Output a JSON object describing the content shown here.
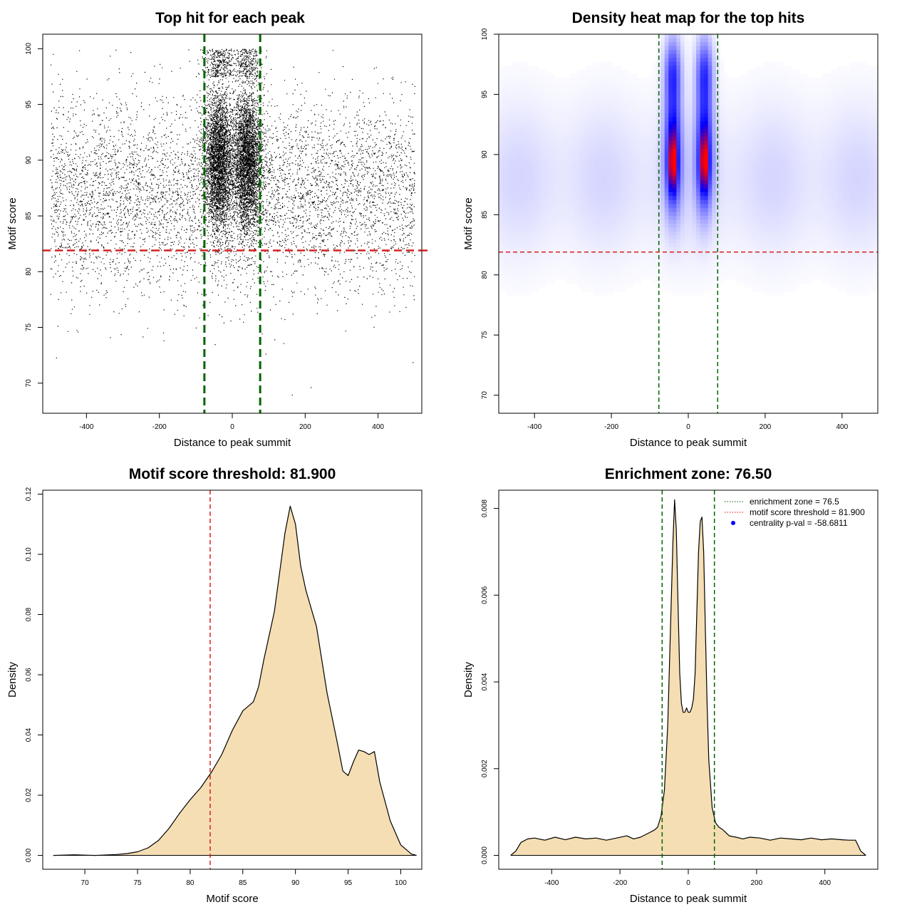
{
  "chart_data": [
    {
      "id": "scatter",
      "type": "scatter",
      "title": "Top hit for each peak",
      "xlabel": "Distance to peak summit",
      "ylabel": "Motif score",
      "xlim": [
        -520,
        520
      ],
      "ylim": [
        67.3,
        101.3
      ],
      "xticks": [
        -400,
        -200,
        0,
        200,
        400
      ],
      "yticks": [
        70,
        75,
        80,
        85,
        90,
        95,
        100
      ],
      "xtick_labels": [
        "-400",
        "-200",
        "0",
        "200",
        "400"
      ],
      "ytick_labels": [
        "70",
        "75",
        "80",
        "85",
        "90",
        "95",
        "100"
      ],
      "vlines": [
        -76.5,
        76.5
      ],
      "hline": 81.9,
      "point_model": {
        "background_count": 5600,
        "background_x_range": [
          -500,
          500
        ],
        "background_score_mean": 87,
        "background_score_sd": 4.3,
        "central_count": 7500,
        "central_modes_x": [
          -38,
          40
        ],
        "central_sd_x": 20,
        "central_score_mean": 90,
        "central_score_sd": 3.2,
        "max_score": 100
      }
    },
    {
      "id": "heatmap",
      "type": "heatmap",
      "title": "Density heat map for the top hits",
      "xlabel": "Distance to peak summit",
      "ylabel": "Motif score",
      "xlim": [
        -493,
        493
      ],
      "ylim": [
        68.5,
        100
      ],
      "xticks": [
        -400,
        -200,
        0,
        200,
        400
      ],
      "yticks": [
        70,
        75,
        80,
        85,
        90,
        95,
        100
      ],
      "xtick_labels": [
        "-400",
        "-200",
        "0",
        "200",
        "400"
      ],
      "ytick_labels": [
        "70",
        "75",
        "80",
        "85",
        "90",
        "95",
        "100"
      ],
      "vlines": [
        -76.5,
        76.5
      ],
      "hline": 81.9,
      "hotspots": [
        {
          "x": -40,
          "y": 89.5,
          "intensity": 1.0
        },
        {
          "x": 42,
          "y": 89.5,
          "intensity": 1.0
        }
      ],
      "colors": [
        "#ffffff",
        "#0000ff",
        "#ff0000"
      ]
    },
    {
      "id": "score_density",
      "type": "area",
      "title": "Motif score threshold: 81.900",
      "xlabel": "Motif score",
      "ylabel": "Density",
      "xlim": [
        66,
        102
      ],
      "ylim": [
        -0.0046,
        0.1213
      ],
      "xticks": [
        70,
        75,
        80,
        85,
        90,
        95,
        100
      ],
      "yticks": [
        0.0,
        0.02,
        0.04,
        0.06,
        0.08,
        0.1,
        0.12
      ],
      "xtick_labels": [
        "70",
        "75",
        "80",
        "85",
        "90",
        "95",
        "100"
      ],
      "ytick_labels": [
        "0.00",
        "0.02",
        "0.04",
        "0.06",
        "0.08",
        "0.10",
        "0.12"
      ],
      "vline": 81.9,
      "x": [
        67,
        69,
        71,
        73,
        74,
        75,
        76,
        77,
        78,
        79,
        80,
        81,
        82,
        83,
        84,
        85,
        86,
        86.5,
        87,
        88,
        89,
        89.5,
        90,
        90.5,
        91,
        92,
        93,
        94,
        94.5,
        95,
        95.5,
        96,
        96.5,
        97,
        97.5,
        98,
        99,
        100,
        101,
        101.5
      ],
      "values": [
        0.0,
        0.0002,
        0.0,
        0.0003,
        0.0006,
        0.0012,
        0.0025,
        0.005,
        0.009,
        0.014,
        0.0185,
        0.0225,
        0.0275,
        0.0335,
        0.0415,
        0.048,
        0.051,
        0.056,
        0.065,
        0.081,
        0.107,
        0.116,
        0.11,
        0.096,
        0.088,
        0.076,
        0.054,
        0.037,
        0.028,
        0.0265,
        0.031,
        0.035,
        0.0345,
        0.0335,
        0.0345,
        0.0245,
        0.0115,
        0.0035,
        0.0005,
        0.0
      ]
    },
    {
      "id": "distance_density",
      "type": "area",
      "title": "Enrichment zone: 76.50",
      "xlabel": "Distance to peak summit",
      "ylabel": "Density",
      "xlim": [
        -555,
        555
      ],
      "ylim": [
        -0.00032,
        0.00842
      ],
      "xticks": [
        -400,
        -200,
        0,
        200,
        400
      ],
      "yticks": [
        0.0,
        0.002,
        0.004,
        0.006,
        0.008
      ],
      "xtick_labels": [
        "-400",
        "-200",
        "0",
        "200",
        "400"
      ],
      "ytick_labels": [
        "0.000",
        "0.002",
        "0.004",
        "0.006",
        "0.008"
      ],
      "vlines": [
        -76.5,
        76.5
      ],
      "x": [
        -520,
        -505,
        -490,
        -470,
        -450,
        -420,
        -390,
        -360,
        -330,
        -300,
        -270,
        -240,
        -210,
        -180,
        -160,
        -140,
        -120,
        -100,
        -90,
        -80,
        -70,
        -60,
        -50,
        -45,
        -40,
        -35,
        -30,
        -25,
        -20,
        -15,
        -10,
        -5,
        0,
        5,
        10,
        15,
        20,
        25,
        30,
        35,
        40,
        45,
        50,
        55,
        60,
        70,
        80,
        90,
        100,
        120,
        140,
        160,
        180,
        210,
        240,
        270,
        300,
        330,
        360,
        390,
        420,
        450,
        470,
        490,
        505,
        520
      ],
      "values": [
        0.0,
        0.0001,
        0.0003,
        0.00038,
        0.0004,
        0.00035,
        0.00042,
        0.00036,
        0.00042,
        0.00038,
        0.0004,
        0.00035,
        0.0004,
        0.00045,
        0.00038,
        0.00042,
        0.0005,
        0.00058,
        0.00065,
        0.0009,
        0.0015,
        0.003,
        0.0058,
        0.0072,
        0.0082,
        0.0075,
        0.0058,
        0.0042,
        0.0035,
        0.0033,
        0.0033,
        0.0034,
        0.0033,
        0.0033,
        0.0034,
        0.0036,
        0.0042,
        0.0056,
        0.007,
        0.0077,
        0.0078,
        0.007,
        0.0052,
        0.0035,
        0.0022,
        0.0011,
        0.00075,
        0.00065,
        0.0006,
        0.00045,
        0.00042,
        0.00038,
        0.00042,
        0.0004,
        0.00035,
        0.0004,
        0.00038,
        0.00036,
        0.0004,
        0.00036,
        0.00038,
        0.00036,
        0.00035,
        0.00035,
        0.0001,
        0.0
      ],
      "legend": {
        "placement": "top-right",
        "entries": [
          {
            "label": "enrichment zone = 76.5",
            "style": "dotted-line",
            "color": "#006400"
          },
          {
            "label": "motif score threshold = 81.900",
            "style": "dotted-line",
            "color": "#ff0000"
          },
          {
            "label": "centrality p-val = -58.6811",
            "style": "dot",
            "color": "#0000ff"
          }
        ]
      }
    }
  ],
  "colors": {
    "fill": "#f5deb3",
    "threshold": "#d62020",
    "zone": "#006400",
    "points": "#000000"
  }
}
